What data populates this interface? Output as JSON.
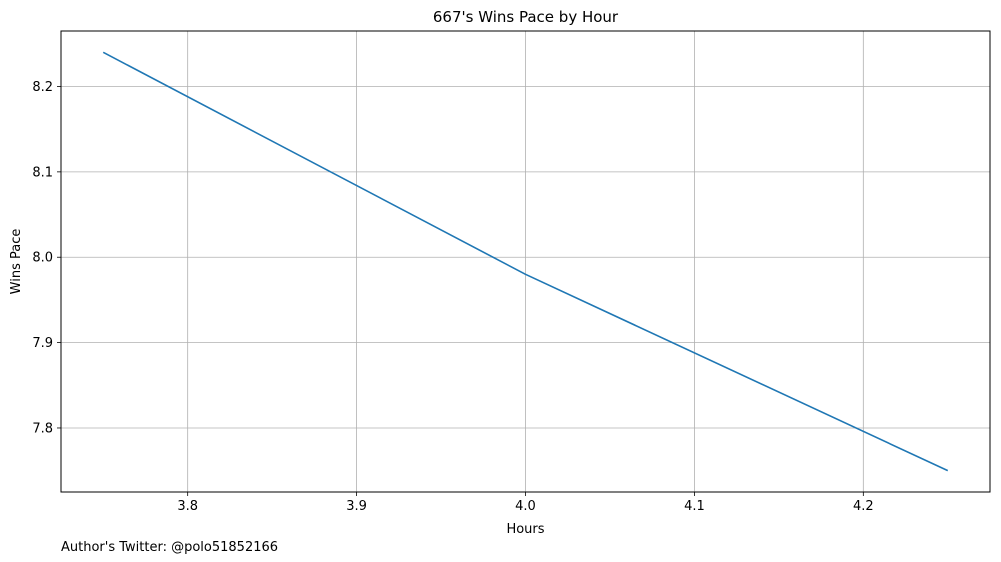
{
  "chart_data": {
    "type": "line",
    "title": "667's Wins Pace by Hour",
    "xlabel": "Hours",
    "ylabel": "Wins Pace",
    "footnote": "Author's Twitter: @polo51852166",
    "xlim": [
      3.725,
      4.275
    ],
    "ylim": [
      7.725,
      8.265
    ],
    "xticks": [
      3.8,
      3.9,
      4.0,
      4.1,
      4.2
    ],
    "xtick_labels": [
      "3.8",
      "3.9",
      "4.0",
      "4.1",
      "4.2"
    ],
    "yticks": [
      7.8,
      7.9,
      8.0,
      8.1,
      8.2
    ],
    "ytick_labels": [
      "7.8",
      "7.9",
      "8.0",
      "8.1",
      "8.2"
    ],
    "grid": true,
    "series": [
      {
        "color": "#1f77b4",
        "x": [
          3.75,
          4.0,
          4.25
        ],
        "y": [
          8.24,
          7.98,
          7.75
        ]
      }
    ]
  }
}
